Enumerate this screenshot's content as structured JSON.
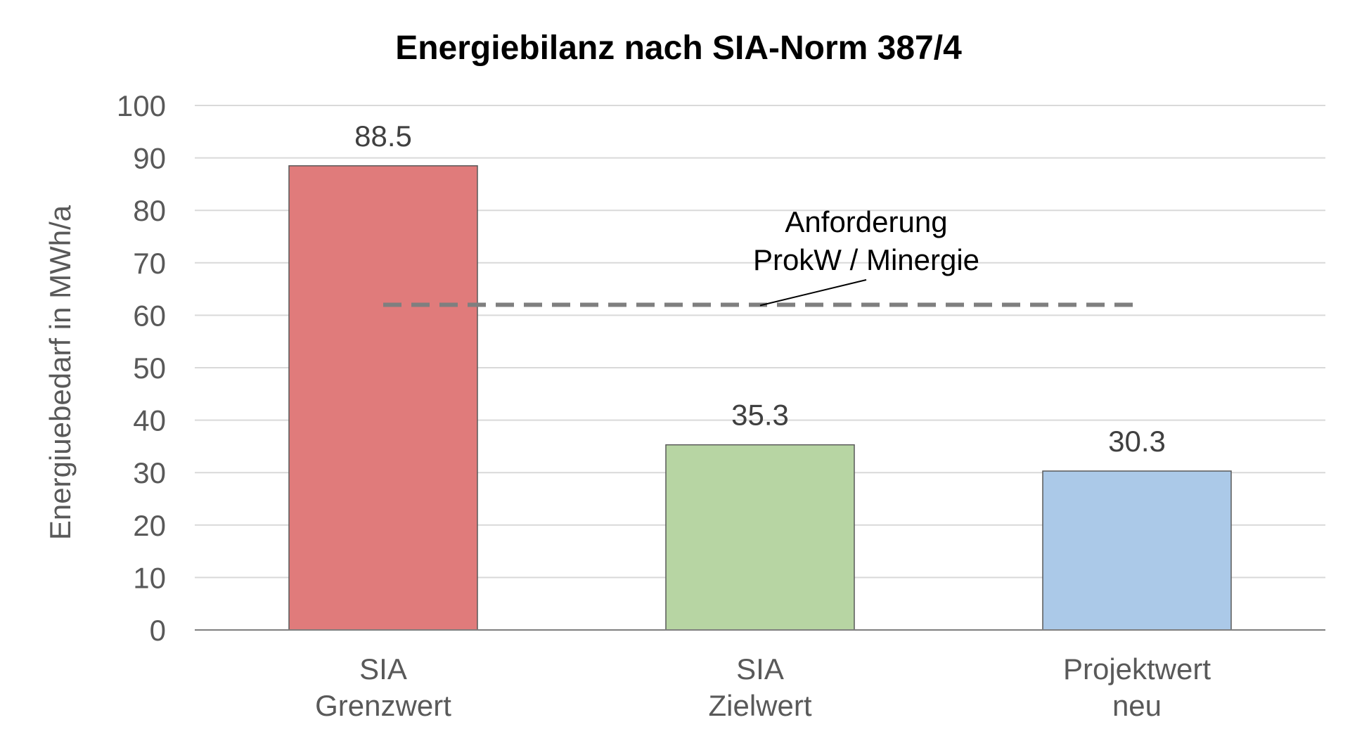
{
  "chart_data": {
    "type": "bar",
    "title": "Energiebilanz nach SIA-Norm 387/4",
    "ylabel": "Energiuebedarf in MWh/a",
    "xlabel": "",
    "ylim": [
      0,
      100
    ],
    "yticks": [
      "0",
      "10",
      "20",
      "30",
      "40",
      "50",
      "60",
      "70",
      "80",
      "90",
      "100"
    ],
    "grid": true,
    "categories": [
      [
        "SIA",
        "Grenzwert"
      ],
      [
        "SIA",
        "Zielwert"
      ],
      [
        "Projektwert",
        "neu"
      ]
    ],
    "values": [
      88.5,
      35.3,
      30.3
    ],
    "data_labels": [
      "88.5",
      "35.3",
      "30.3"
    ],
    "colors": [
      "#e07b7b",
      "#b7d5a3",
      "#abc9e8"
    ],
    "reference_line": {
      "value": 62,
      "style": "dashed",
      "color": "#7f7f7f",
      "label": [
        "Anforderung",
        "ProkW / Minergie"
      ]
    }
  }
}
